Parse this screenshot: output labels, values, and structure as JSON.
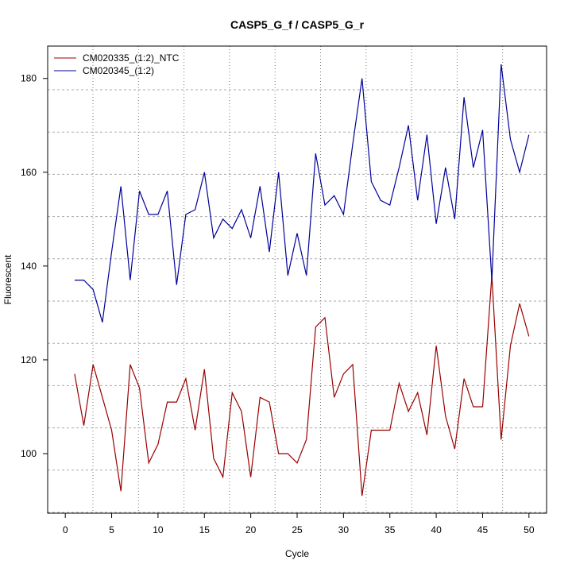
{
  "chart_data": {
    "type": "line",
    "title": "CASP5_G_f / CASP5_G_r",
    "xlabel": "Cycle",
    "ylabel": "Fluorescent",
    "xlim": [
      -1.9,
      51.9
    ],
    "ylim": [
      87.3,
      186.9
    ],
    "xticks": [
      0,
      5,
      10,
      15,
      20,
      25,
      30,
      35,
      40,
      45,
      50
    ],
    "yticks": [
      100,
      120,
      140,
      160,
      180
    ],
    "grid": true,
    "legend_position": "top-left",
    "x": [
      1,
      2,
      3,
      4,
      5,
      6,
      7,
      8,
      9,
      10,
      11,
      12,
      13,
      14,
      15,
      16,
      17,
      18,
      19,
      20,
      21,
      22,
      23,
      24,
      25,
      26,
      27,
      28,
      29,
      30,
      31,
      32,
      33,
      34,
      35,
      36,
      37,
      38,
      39,
      40,
      41,
      42,
      43,
      44,
      45,
      46,
      47,
      48,
      49,
      50
    ],
    "series": [
      {
        "name": "CM020335_(1:2)_NTC",
        "color": "#990000",
        "values": [
          117,
          106,
          119,
          112,
          105,
          92,
          119,
          114,
          98,
          102,
          111,
          111,
          116,
          105,
          118,
          99,
          95,
          113,
          109,
          95,
          112,
          111,
          100,
          100,
          98,
          103,
          127,
          129,
          112,
          117,
          119,
          91,
          105,
          105,
          105,
          115,
          109,
          113,
          104,
          123,
          108,
          101,
          116,
          110,
          110,
          138,
          103,
          123,
          132,
          125
        ]
      },
      {
        "name": "CM020345_(1:2)",
        "color": "#000099",
        "values": [
          137,
          137,
          135,
          128,
          143,
          157,
          137,
          156,
          151,
          151,
          156,
          136,
          151,
          152,
          160,
          146,
          150,
          148,
          152,
          146,
          157,
          143,
          160,
          138,
          147,
          138,
          164,
          153,
          155,
          151,
          166,
          180,
          158,
          154,
          153,
          161,
          170,
          154,
          168,
          149,
          161,
          150,
          176,
          161,
          169,
          137,
          183,
          167,
          160,
          168
        ]
      }
    ]
  }
}
